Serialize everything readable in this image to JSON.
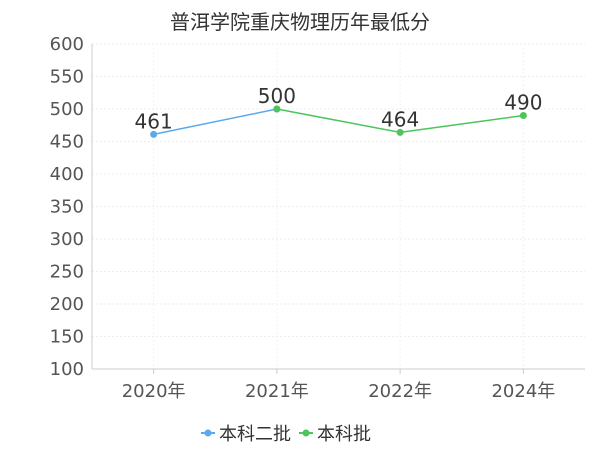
{
  "title": "普洱学院重庆物理历年最低分",
  "chart_data": {
    "type": "line",
    "title": "普洱学院重庆物理历年最低分",
    "categories": [
      "2020年",
      "2021年",
      "2022年",
      "2024年"
    ],
    "ylim": [
      100,
      600
    ],
    "yticks": [
      100,
      150,
      200,
      250,
      300,
      350,
      400,
      450,
      500,
      550,
      600
    ],
    "grid": true,
    "legend_placement": "bottom-center",
    "series": [
      {
        "name": "本科二批",
        "color": "#5aa9ee",
        "values": [
          461,
          500,
          null,
          null
        ]
      },
      {
        "name": "本科批",
        "color": "#4cc45b",
        "values": [
          null,
          500,
          464,
          490
        ]
      }
    ],
    "data_labels": [
      {
        "category": "2020年",
        "text": "461"
      },
      {
        "category": "2021年",
        "text": "500"
      },
      {
        "category": "2022年",
        "text": "464"
      },
      {
        "category": "2024年",
        "text": "490"
      }
    ]
  }
}
